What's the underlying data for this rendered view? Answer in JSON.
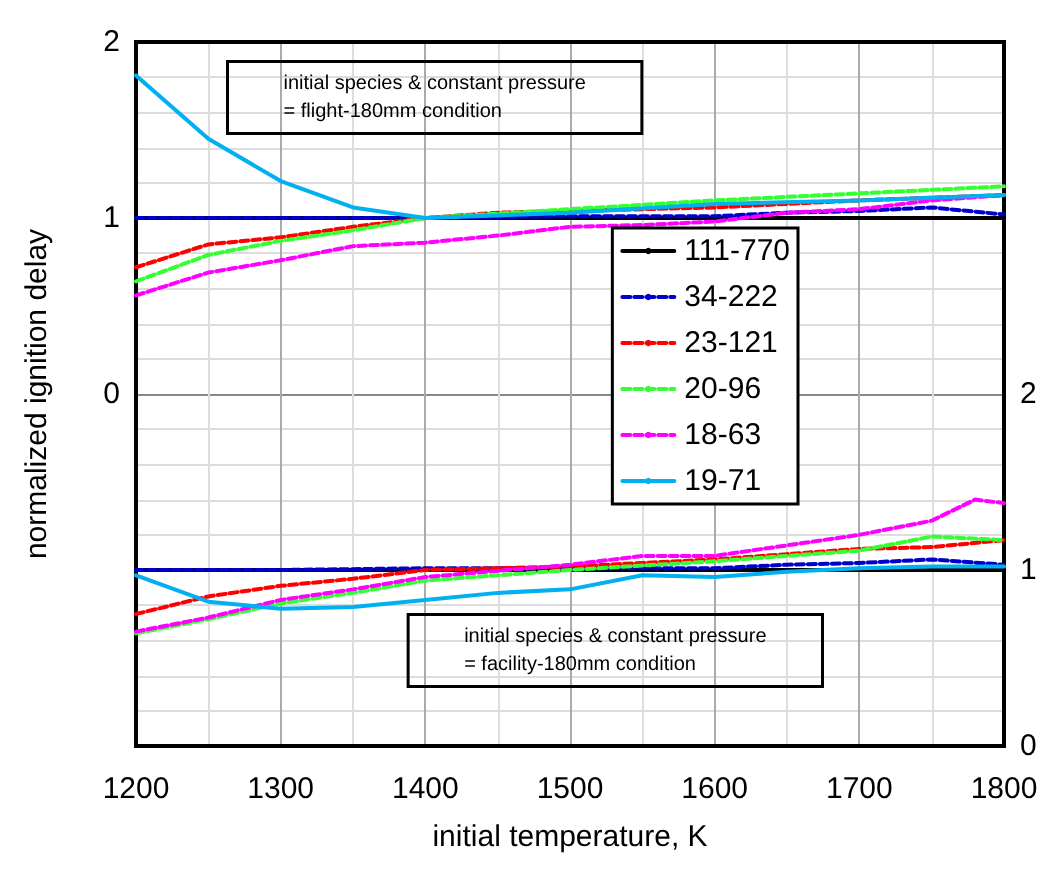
{
  "chart_data": {
    "type": "line",
    "xlabel": "initial temperature, K",
    "ylabel": "normalized ignition delay",
    "annotations": [
      "initial species & constant pressure\n= flight-180mm condition",
      "initial species & constant pressure\n= facility-180mm condition"
    ],
    "xlim": [
      1200,
      1800
    ],
    "xticks": [
      1200,
      1300,
      1400,
      1500,
      1600,
      1700,
      1800
    ],
    "ylim": [
      -2,
      2
    ],
    "yticks": [
      {
        "value": -2,
        "label": null
      },
      {
        "value": -1,
        "label": null
      },
      0,
      1,
      2
    ],
    "y2lim": [
      0,
      4
    ],
    "y2ticks": [
      0,
      1,
      2
    ],
    "grid": true,
    "legend": "center right",
    "marker": "none",
    "series": [
      {
        "name": "111-770",
        "color": "#000000",
        "line_style": "solid",
        "x": [
          1200,
          1800
        ],
        "values": [
          1,
          1
        ]
      },
      {
        "name": "34-222",
        "color": "#0000cc",
        "line_style": "dashed",
        "x": [
          1200,
          1300,
          1400,
          1500,
          1600,
          1650,
          1700,
          1750,
          1800
        ],
        "values": [
          1,
          1,
          1,
          1.01,
          1.01,
          1.03,
          1.04,
          1.06,
          1.02
        ]
      },
      {
        "name": "23-121",
        "color": "#ff0000",
        "line_style": "dashed",
        "x": [
          1200,
          1250,
          1300,
          1350,
          1400,
          1450,
          1500,
          1600,
          1700,
          1800
        ],
        "values": [
          0.72,
          0.85,
          0.89,
          0.95,
          1,
          1.03,
          1.04,
          1.06,
          1.1,
          1.13
        ]
      },
      {
        "name": "20-96",
        "color": "#33ff33",
        "line_style": "dashed",
        "x": [
          1200,
          1250,
          1300,
          1350,
          1400,
          1500,
          1600,
          1700,
          1800
        ],
        "values": [
          0.64,
          0.79,
          0.87,
          0.93,
          1,
          1.05,
          1.1,
          1.14,
          1.18
        ]
      },
      {
        "name": "18-63",
        "color": "#ff00ff",
        "line_style": "dashed",
        "x": [
          1200,
          1250,
          1300,
          1350,
          1400,
          1450,
          1500,
          1550,
          1600,
          1650,
          1700,
          1750,
          1800
        ],
        "values": [
          0.56,
          0.69,
          0.76,
          0.84,
          0.86,
          0.9,
          0.95,
          0.96,
          0.98,
          1.03,
          1.05,
          1.1,
          1.13
        ]
      },
      {
        "name": "19-71",
        "color": "#00b0f0",
        "line_style": "solid",
        "x": [
          1200,
          1250,
          1300,
          1350,
          1400,
          1500,
          1600,
          1700,
          1800
        ],
        "values": [
          1.81,
          1.45,
          1.21,
          1.06,
          1,
          1.03,
          1.08,
          1.1,
          1.13
        ]
      },
      {
        "color": "#000000",
        "line_style": "solid",
        "axis": "y2",
        "x": [
          1200,
          1800
        ],
        "values": [
          1,
          1
        ]
      },
      {
        "color": "#0000cc",
        "line_style": "dashed",
        "axis": "y2",
        "x": [
          1200,
          1300,
          1400,
          1500,
          1600,
          1650,
          1700,
          1750,
          1800
        ],
        "values": [
          1,
          1,
          1.01,
          1.01,
          1.01,
          1.03,
          1.04,
          1.06,
          1.03
        ]
      },
      {
        "color": "#ff0000",
        "line_style": "dashed",
        "axis": "y2",
        "x": [
          1200,
          1250,
          1300,
          1350,
          1400,
          1500,
          1600,
          1650,
          1700,
          1750,
          1800
        ],
        "values": [
          0.75,
          0.85,
          0.91,
          0.95,
          1,
          1.02,
          1.06,
          1.09,
          1.12,
          1.13,
          1.17
        ]
      },
      {
        "color": "#33ff33",
        "line_style": "dashed",
        "axis": "y2",
        "x": [
          1200,
          1250,
          1300,
          1350,
          1400,
          1450,
          1500,
          1600,
          1700,
          1750,
          1800
        ],
        "values": [
          0.64,
          0.72,
          0.81,
          0.87,
          0.94,
          0.97,
          1,
          1.05,
          1.11,
          1.19,
          1.17
        ]
      },
      {
        "color": "#ff00ff",
        "line_style": "dashed",
        "axis": "y2",
        "x": [
          1200,
          1250,
          1300,
          1350,
          1400,
          1500,
          1550,
          1600,
          1650,
          1700,
          1750,
          1780,
          1800
        ],
        "values": [
          0.65,
          0.73,
          0.83,
          0.89,
          0.96,
          1.03,
          1.08,
          1.08,
          1.14,
          1.2,
          1.28,
          1.4,
          1.38
        ]
      },
      {
        "color": "#00b0f0",
        "line_style": "solid",
        "axis": "y2",
        "x": [
          1200,
          1250,
          1300,
          1350,
          1400,
          1450,
          1500,
          1550,
          1600,
          1650,
          1700,
          1750,
          1800
        ],
        "values": [
          0.97,
          0.82,
          0.78,
          0.79,
          0.83,
          0.87,
          0.89,
          0.97,
          0.96,
          0.99,
          1.01,
          1.02,
          1.02
        ]
      }
    ]
  }
}
